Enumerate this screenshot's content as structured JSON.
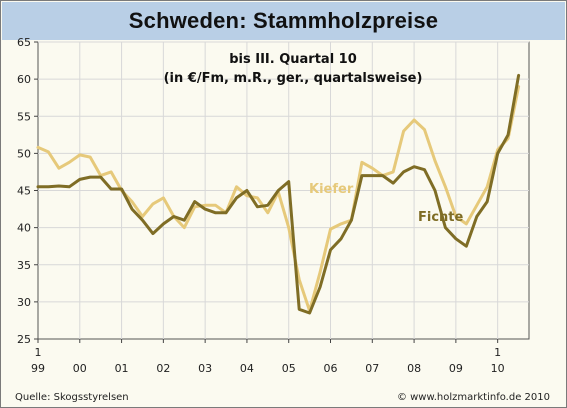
{
  "chart_data": {
    "type": "line",
    "title": "Schweden: Stammholzpreise",
    "subtitle_line1": "bis III. Quartal 10",
    "subtitle_line2": "(in €/Fm, m.R., ger., quartalsweise)",
    "ylim": [
      25,
      65
    ],
    "yticks": [
      "25",
      "30",
      "35",
      "40",
      "45",
      "50",
      "55",
      "60",
      "65"
    ],
    "xlim": [
      0,
      47
    ],
    "xtick_positions": [
      0,
      4,
      8,
      12,
      16,
      20,
      24,
      28,
      32,
      36,
      40,
      44
    ],
    "xtick_labels_top": [
      "1",
      "",
      "",
      "",
      "",
      "",
      "",
      "",
      "",
      "",
      "",
      "1"
    ],
    "xtick_labels_bottom": [
      "99",
      "00",
      "01",
      "02",
      "03",
      "04",
      "05",
      "06",
      "07",
      "08",
      "09",
      "10"
    ],
    "grid": true,
    "series": [
      {
        "name": "Kiefer",
        "color": "#e6c97a",
        "values": [
          50.8,
          50.2,
          48.0,
          48.8,
          49.8,
          49.5,
          47.0,
          47.5,
          45.0,
          43.5,
          41.5,
          43.2,
          44.0,
          41.5,
          40.0,
          42.8,
          43.0,
          43.0,
          42.0,
          45.5,
          44.3,
          44.0,
          42.0,
          44.8,
          40.0,
          33.0,
          28.8,
          34.0,
          39.8,
          40.5,
          41.0,
          48.8,
          48.0,
          47.0,
          47.5,
          53.0,
          54.5,
          53.2,
          49.0,
          45.5,
          41.5,
          40.5,
          43.0,
          45.5,
          50.5,
          52.0,
          59.0
        ]
      },
      {
        "name": "Fichte",
        "color": "#7f6d25",
        "values": [
          45.5,
          45.5,
          45.6,
          45.5,
          46.5,
          46.8,
          46.8,
          45.2,
          45.2,
          42.5,
          41.0,
          39.2,
          40.5,
          41.5,
          41.0,
          43.5,
          42.5,
          42.0,
          42.0,
          44.0,
          45.0,
          42.8,
          43.0,
          45.0,
          46.2,
          29.0,
          28.5,
          32.0,
          37.0,
          38.5,
          41.0,
          47.0,
          47.0,
          47.0,
          46.0,
          47.5,
          48.2,
          47.8,
          45.0,
          40.0,
          38.5,
          37.5,
          41.5,
          43.5,
          50.0,
          52.5,
          60.5
        ]
      }
    ]
  },
  "series_labels": {
    "kiefer": "Kiefer",
    "fichte": "Fichte"
  },
  "footer": {
    "source": "Quelle: Skogsstyrelsen",
    "copyright": "© www.holzmarktinfo.de 2010"
  },
  "colors": {
    "title_bar": "#b9cfe6",
    "plot_background": "#fbfaf0",
    "grid": "#d8d8d8"
  }
}
